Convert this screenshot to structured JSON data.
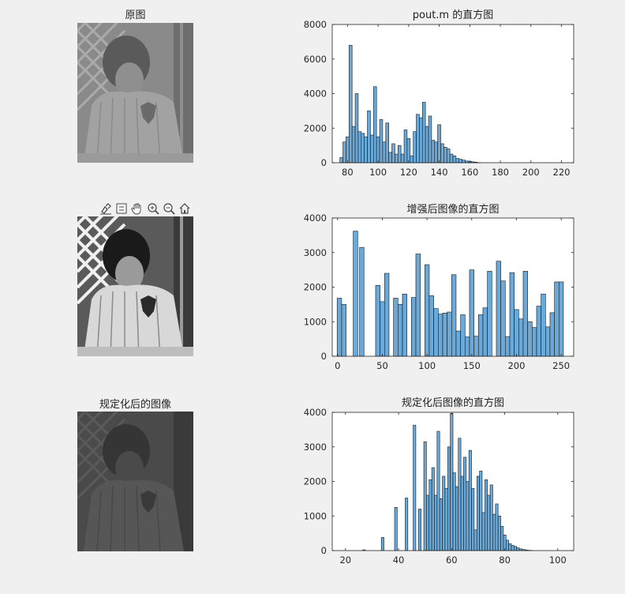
{
  "images": [
    {
      "title": "原图"
    },
    {
      "title": ""
    },
    {
      "title": "规定化后的图像"
    }
  ],
  "toolbar": {
    "buttons": [
      "brush-icon",
      "datatip-icon",
      "pan-icon",
      "zoom-in-icon",
      "zoom-out-icon",
      "home-icon"
    ]
  },
  "colors": {
    "bar_fill": "#6aa9d8",
    "bar_edge": "#1a1a1a",
    "background": "#f0f0f0"
  },
  "chart_data": [
    {
      "type": "bar",
      "title": "pout.m 的直方图",
      "xlim": [
        70,
        228
      ],
      "ylim": [
        0,
        8000
      ],
      "xticks": [
        80,
        100,
        120,
        140,
        160,
        180,
        200,
        220
      ],
      "yticks": [
        0,
        2000,
        4000,
        6000,
        8000
      ],
      "bin_width": 2,
      "x": [
        76,
        78,
        80,
        82,
        84,
        86,
        88,
        90,
        92,
        94,
        96,
        98,
        100,
        102,
        104,
        106,
        108,
        110,
        112,
        114,
        116,
        118,
        120,
        122,
        124,
        126,
        128,
        130,
        132,
        134,
        136,
        138,
        140,
        142,
        144,
        146,
        148,
        150,
        152,
        154,
        156,
        158,
        160,
        162,
        164,
        166
      ],
      "values": [
        300,
        1200,
        1500,
        6800,
        2100,
        4000,
        1800,
        1700,
        1500,
        3000,
        1600,
        4400,
        1500,
        2500,
        1200,
        2300,
        600,
        1100,
        500,
        1000,
        500,
        1900,
        1400,
        400,
        1800,
        2800,
        2600,
        3500,
        2100,
        2700,
        1300,
        1200,
        2200,
        1100,
        900,
        800,
        500,
        400,
        250,
        200,
        150,
        100,
        80,
        50,
        30,
        10
      ]
    },
    {
      "type": "bar",
      "title": "增强后图像的直方图",
      "xlim": [
        -6,
        264
      ],
      "ylim": [
        0,
        4000
      ],
      "xticks": [
        0,
        50,
        100,
        150,
        200,
        250
      ],
      "yticks": [
        0,
        1000,
        2000,
        3000,
        4000
      ],
      "bin_width": 5,
      "x": [
        2,
        7,
        20,
        27,
        45,
        50,
        55,
        65,
        70,
        75,
        85,
        90,
        100,
        105,
        110,
        115,
        120,
        125,
        130,
        135,
        140,
        145,
        150,
        155,
        160,
        165,
        170,
        180,
        185,
        190,
        195,
        200,
        205,
        210,
        215,
        220,
        225,
        230,
        235,
        240,
        245,
        250
      ],
      "values": [
        1680,
        1500,
        3620,
        3150,
        2050,
        1580,
        2400,
        1680,
        1500,
        1800,
        1700,
        2960,
        2650,
        1750,
        1380,
        1220,
        1250,
        1280,
        2360,
        730,
        1200,
        560,
        2500,
        580,
        1200,
        1400,
        2460,
        2750,
        2180,
        570,
        2420,
        1350,
        1080,
        2460,
        1000,
        830,
        1450,
        1800,
        850,
        1260,
        2150,
        2150
      ]
    },
    {
      "type": "bar",
      "title": "规定化后图像的直方图",
      "xlim": [
        15,
        106
      ],
      "ylim": [
        0,
        4000
      ],
      "xticks": [
        20,
        40,
        60,
        80,
        100
      ],
      "yticks": [
        0,
        1000,
        2000,
        3000,
        4000
      ],
      "bin_width": 1,
      "x": [
        27,
        34,
        39,
        43,
        46,
        48,
        50,
        51,
        52,
        53,
        54,
        55,
        56,
        57,
        58,
        59,
        60,
        61,
        62,
        63,
        64,
        65,
        66,
        67,
        68,
        69,
        70,
        71,
        72,
        73,
        74,
        75,
        76,
        77,
        78,
        79,
        80,
        81,
        82,
        83,
        84,
        85,
        86,
        87,
        88,
        89,
        90
      ],
      "values": [
        20,
        380,
        1250,
        1520,
        3630,
        1200,
        3150,
        1600,
        2050,
        2400,
        1600,
        3450,
        1500,
        2150,
        1800,
        3000,
        3970,
        2250,
        1850,
        3250,
        2150,
        2700,
        2000,
        2900,
        1800,
        600,
        2150,
        2300,
        1100,
        2050,
        1600,
        1900,
        1050,
        1350,
        1000,
        700,
        450,
        300,
        200,
        150,
        120,
        80,
        50,
        30,
        20,
        10,
        5
      ]
    }
  ]
}
